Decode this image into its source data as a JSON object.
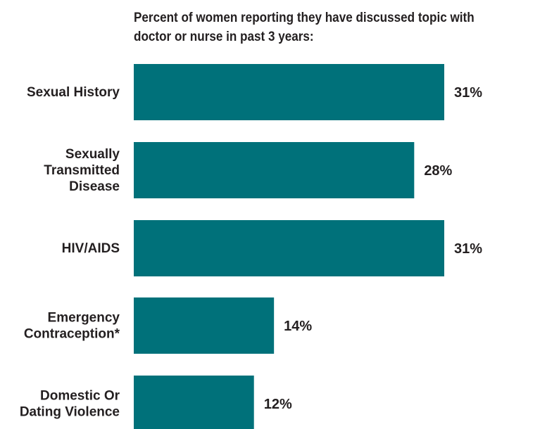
{
  "chart_data": {
    "type": "bar",
    "orientation": "horizontal",
    "title_lines": [
      "Percent of women reporting they have discussed topic with",
      "doctor or nurse in past 3 years:"
    ],
    "categories": [
      [
        "Sexual History"
      ],
      [
        "Sexually",
        "Transmitted",
        "Disease"
      ],
      [
        "HIV/AIDS"
      ],
      [
        "Emergency",
        "Contraception*"
      ],
      [
        "Domestic Or",
        "Dating Violence"
      ]
    ],
    "values": [
      31,
      28,
      31,
      14,
      12
    ],
    "value_labels": [
      "31%",
      "28%",
      "31%",
      "14%",
      "12%"
    ],
    "unit": "%",
    "xlim": [
      0,
      31
    ],
    "bar_color": "#00717a",
    "grid": false,
    "legend": "none"
  }
}
